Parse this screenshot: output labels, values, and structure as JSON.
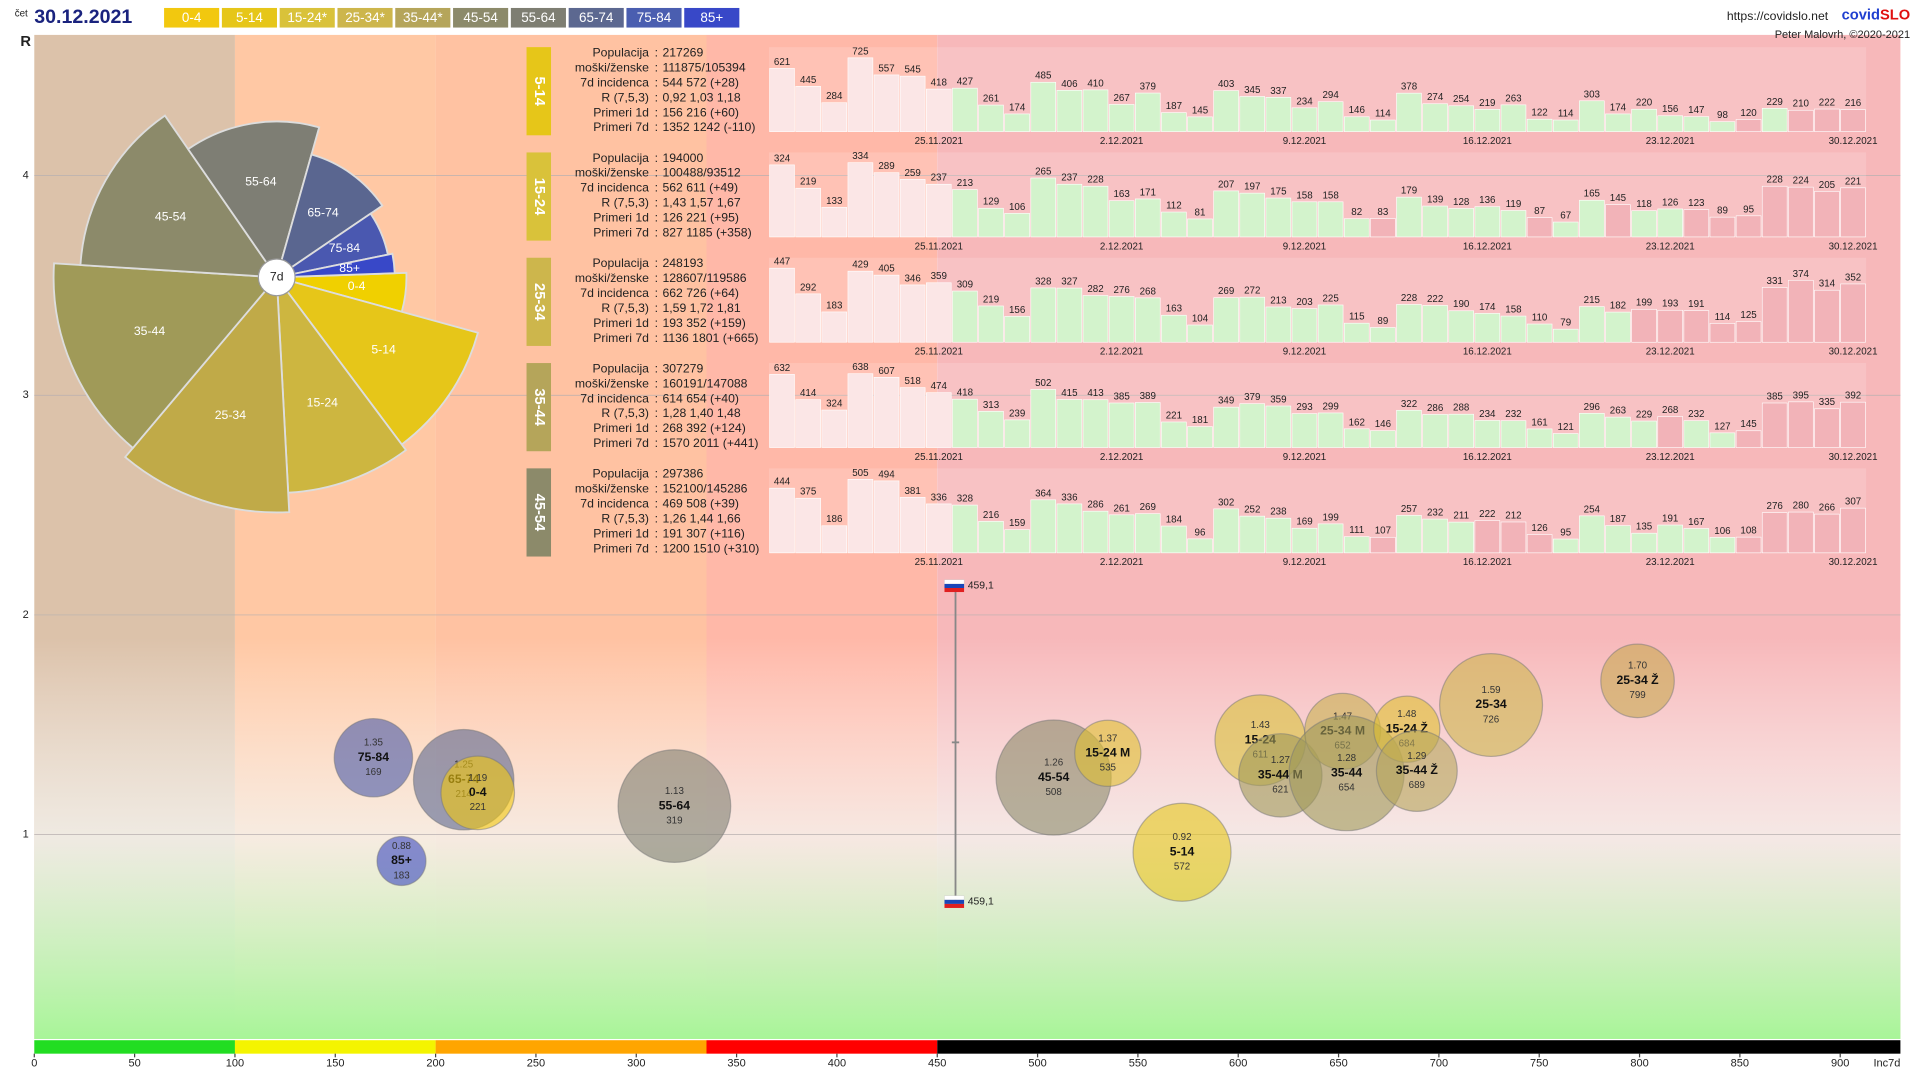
{
  "header": {
    "weekday": "čet",
    "date": "30.12.2021",
    "url": "https://covidslo.net",
    "brand_a": "covid",
    "brand_b": "SLO",
    "author": "Peter Malovrh, ©2020-2021"
  },
  "legend": [
    {
      "label": "0-4",
      "color": "#f2c80f"
    },
    {
      "label": "5-14",
      "color": "#e6c619"
    },
    {
      "label": "15-24*",
      "color": "#d9c23a"
    },
    {
      "label": "25-34*",
      "color": "#cdb64c"
    },
    {
      "label": "35-44*",
      "color": "#b5a55a"
    },
    {
      "label": "45-54",
      "color": "#8c8a6a"
    },
    {
      "label": "55-64",
      "color": "#7e7e72"
    },
    {
      "label": "65-74",
      "color": "#5c6890"
    },
    {
      "label": "75-84",
      "color": "#4a5eb0"
    },
    {
      "label": "85+",
      "color": "#3848c8"
    }
  ],
  "stat_labels": [
    "Populacija",
    "moški/ženske",
    "7d incidenca",
    "R (7,5,3)",
    "Primeri 1d",
    "Primeri 7d"
  ],
  "stat_separator": ":",
  "chart_data": [
    {
      "type": "bubble",
      "xlabel": "Inc7d",
      "ylabel": "R",
      "xlim": [
        0,
        930
      ],
      "ylim": [
        0.07,
        4.64
      ],
      "xticks": [
        0,
        50,
        100,
        150,
        200,
        250,
        300,
        350,
        400,
        450,
        500,
        550,
        600,
        650,
        700,
        750,
        800,
        850,
        900
      ],
      "yticks": [
        1,
        2,
        3,
        4
      ],
      "grid": true,
      "zones": [
        {
          "from": 0,
          "to": 100,
          "bg": "#dcc2aa",
          "bar": "#22dd22"
        },
        {
          "from": 100,
          "to": 200,
          "bg": "#ffc8a4",
          "bar": "#f4f400"
        },
        {
          "from": 200,
          "to": 335,
          "bg": "#ffc2a2",
          "bar": "#ffa500"
        },
        {
          "from": 335,
          "to": 450,
          "bg": "#ffb8a8",
          "bar": "#ff0000"
        },
        {
          "from": 450,
          "to": 930,
          "bg": "#f7b8ba",
          "bar": "#000000"
        }
      ],
      "marker": {
        "x": 459.1,
        "y": 1.42,
        "label": "459,1"
      },
      "names": [
        "75-84",
        "85+",
        "65-74",
        "0-4",
        "55-64",
        "45-54",
        "15-24 M",
        "5-14",
        "15-24",
        "35-44 M",
        "25-34 M",
        "35-44",
        "15-24 Ž",
        "35-44 Ž",
        "25-34",
        "25-34 Ž"
      ],
      "x": [
        169,
        183,
        214,
        221,
        319,
        508,
        535,
        572,
        611,
        621,
        652,
        654,
        684,
        689,
        726,
        799
      ],
      "y": [
        1.35,
        0.88,
        1.25,
        1.19,
        1.13,
        1.26,
        1.37,
        0.92,
        1.43,
        1.27,
        1.47,
        1.28,
        1.48,
        1.29,
        1.59,
        1.7
      ],
      "y_labels": [
        "1.35",
        "0.88",
        "1.25",
        "1.19",
        "1.13",
        "1.26",
        "1.37",
        "0.92",
        "1.43",
        "1.27",
        "1.47",
        "1.28",
        "1.48",
        "1.29",
        "1.59",
        "1.70"
      ],
      "sizes": [
        32,
        20,
        41,
        30,
        46,
        47,
        27,
        40,
        37,
        34,
        31,
        47,
        27,
        33,
        42,
        30
      ],
      "colors": [
        "#4a5aa8",
        "#3a4ac0",
        "#5c6890",
        "#f2c80f",
        "#7e7e72",
        "#8c8a6a",
        "#e0c030",
        "#e6c619",
        "#d9c23a",
        "#a09a58",
        "#c8b050",
        "#a09a58",
        "#e0c030",
        "#b5a55a",
        "#cdb64c",
        "#c8a850"
      ]
    },
    {
      "type": "rose",
      "center_label": "7d",
      "start_angle": -2,
      "labels": [
        "0-4",
        "5-14",
        "15-24",
        "25-34",
        "35-44",
        "45-54",
        "55-64",
        "65-74",
        "75-84",
        "85+"
      ],
      "values": [
        221,
        572,
        611,
        726,
        654,
        508,
        319,
        214,
        169,
        183
      ],
      "weights": [
        100000,
        217269,
        194000,
        248193,
        307279,
        297386,
        290000,
        230000,
        130000,
        55000
      ],
      "colors": [
        "#f0d000",
        "#e6c619",
        "#cdb640",
        "#c0aa48",
        "#a09a58",
        "#8c8a6a",
        "#7e7e74",
        "#5a6690",
        "#4a58b0",
        "#3848c8"
      ]
    },
    {
      "type": "bar",
      "group": "5-14",
      "color": "#e6c619",
      "ylim": [
        0,
        830
      ],
      "stats": [
        "217269",
        "111875/105394",
        "544 572 (+28)",
        "0,92 1,03 1,18",
        "156 216 (+60)",
        "1352 1242 (-110)"
      ],
      "categories": [
        null,
        null,
        null,
        null,
        null,
        null,
        "25.11.2021",
        null,
        null,
        null,
        null,
        null,
        null,
        "2.12.2021",
        null,
        null,
        null,
        null,
        null,
        null,
        "9.12.2021",
        null,
        null,
        null,
        null,
        null,
        null,
        "16.12.2021",
        null,
        null,
        null,
        null,
        null,
        null,
        "23.12.2021",
        null,
        null,
        null,
        null,
        null,
        null,
        "30.12.2021"
      ],
      "values": [
        621,
        445,
        284,
        725,
        557,
        545,
        418,
        427,
        261,
        174,
        485,
        406,
        410,
        267,
        379,
        187,
        145,
        403,
        345,
        337,
        234,
        294,
        146,
        114,
        378,
        274,
        254,
        219,
        263,
        122,
        114,
        303,
        174,
        220,
        156,
        147,
        98,
        120,
        229,
        210,
        222,
        216
      ]
    },
    {
      "type": "bar",
      "group": "15-24",
      "color": "#d9c23a",
      "ylim": [
        0,
        380
      ],
      "stats": [
        "194000",
        "100488/93512",
        "562 611 (+49)",
        "1,43 1,57 1,67",
        "126 221 (+95)",
        "827 1185 (+358)"
      ],
      "categories": [
        null,
        null,
        null,
        null,
        null,
        null,
        "25.11.2021",
        null,
        null,
        null,
        null,
        null,
        null,
        "2.12.2021",
        null,
        null,
        null,
        null,
        null,
        null,
        "9.12.2021",
        null,
        null,
        null,
        null,
        null,
        null,
        "16.12.2021",
        null,
        null,
        null,
        null,
        null,
        null,
        "23.12.2021",
        null,
        null,
        null,
        null,
        null,
        null,
        "30.12.2021"
      ],
      "values": [
        324,
        219,
        133,
        334,
        289,
        259,
        237,
        213,
        129,
        106,
        265,
        237,
        228,
        163,
        171,
        112,
        81,
        207,
        197,
        175,
        158,
        158,
        82,
        83,
        179,
        139,
        128,
        136,
        119,
        87,
        67,
        165,
        145,
        118,
        126,
        123,
        89,
        95,
        228,
        224,
        205,
        221
      ]
    },
    {
      "type": "bar",
      "group": "25-34",
      "color": "#cdb64c",
      "ylim": [
        0,
        510
      ],
      "stats": [
        "248193",
        "128607/119586",
        "662 726 (+64)",
        "1,59 1,72 1,81",
        "193 352 (+159)",
        "1136 1801 (+665)"
      ],
      "categories": [
        null,
        null,
        null,
        null,
        null,
        null,
        "25.11.2021",
        null,
        null,
        null,
        null,
        null,
        null,
        "2.12.2021",
        null,
        null,
        null,
        null,
        null,
        null,
        "9.12.2021",
        null,
        null,
        null,
        null,
        null,
        null,
        "16.12.2021",
        null,
        null,
        null,
        null,
        null,
        null,
        "23.12.2021",
        null,
        null,
        null,
        null,
        null,
        null,
        "30.12.2021"
      ],
      "values": [
        447,
        292,
        183,
        429,
        405,
        346,
        359,
        309,
        219,
        156,
        328,
        327,
        282,
        276,
        268,
        163,
        104,
        269,
        272,
        213,
        203,
        225,
        115,
        89,
        228,
        222,
        190,
        174,
        158,
        110,
        79,
        215,
        182,
        199,
        193,
        191,
        114,
        125,
        331,
        374,
        314,
        352
      ]
    },
    {
      "type": "bar",
      "group": "35-44",
      "color": "#b5a55a",
      "ylim": [
        0,
        730
      ],
      "stats": [
        "307279",
        "160191/147088",
        "614 654 (+40)",
        "1,28 1,40 1,48",
        "268 392 (+124)",
        "1570 2011 (+441)"
      ],
      "categories": [
        null,
        null,
        null,
        null,
        null,
        null,
        "25.11.2021",
        null,
        null,
        null,
        null,
        null,
        null,
        "2.12.2021",
        null,
        null,
        null,
        null,
        null,
        null,
        "9.12.2021",
        null,
        null,
        null,
        null,
        null,
        null,
        "16.12.2021",
        null,
        null,
        null,
        null,
        null,
        null,
        "23.12.2021",
        null,
        null,
        null,
        null,
        null,
        null,
        "30.12.2021"
      ],
      "values": [
        632,
        414,
        324,
        638,
        607,
        518,
        474,
        418,
        313,
        239,
        502,
        415,
        413,
        385,
        389,
        221,
        181,
        349,
        379,
        359,
        293,
        299,
        162,
        146,
        322,
        286,
        288,
        234,
        232,
        161,
        121,
        296,
        263,
        229,
        268,
        232,
        127,
        145,
        385,
        395,
        335,
        392
      ]
    },
    {
      "type": "bar",
      "group": "45-54",
      "color": "#8c8a6a",
      "ylim": [
        0,
        580
      ],
      "stats": [
        "297386",
        "152100/145286",
        "469 508 (+39)",
        "1,26 1,44 1,66",
        "191 307 (+116)",
        "1200 1510 (+310)"
      ],
      "categories": [
        null,
        null,
        null,
        null,
        null,
        null,
        "25.11.2021",
        null,
        null,
        null,
        null,
        null,
        null,
        "2.12.2021",
        null,
        null,
        null,
        null,
        null,
        null,
        "9.12.2021",
        null,
        null,
        null,
        null,
        null,
        null,
        "16.12.2021",
        null,
        null,
        null,
        null,
        null,
        null,
        "23.12.2021",
        null,
        null,
        null,
        null,
        null,
        null,
        "30.12.2021"
      ],
      "values": [
        444,
        375,
        186,
        505,
        494,
        381,
        336,
        328,
        216,
        159,
        364,
        336,
        286,
        261,
        269,
        184,
        96,
        302,
        252,
        238,
        169,
        199,
        111,
        107,
        257,
        232,
        211,
        222,
        212,
        126,
        95,
        254,
        187,
        135,
        191,
        167,
        106,
        108,
        276,
        280,
        266,
        307
      ]
    }
  ]
}
